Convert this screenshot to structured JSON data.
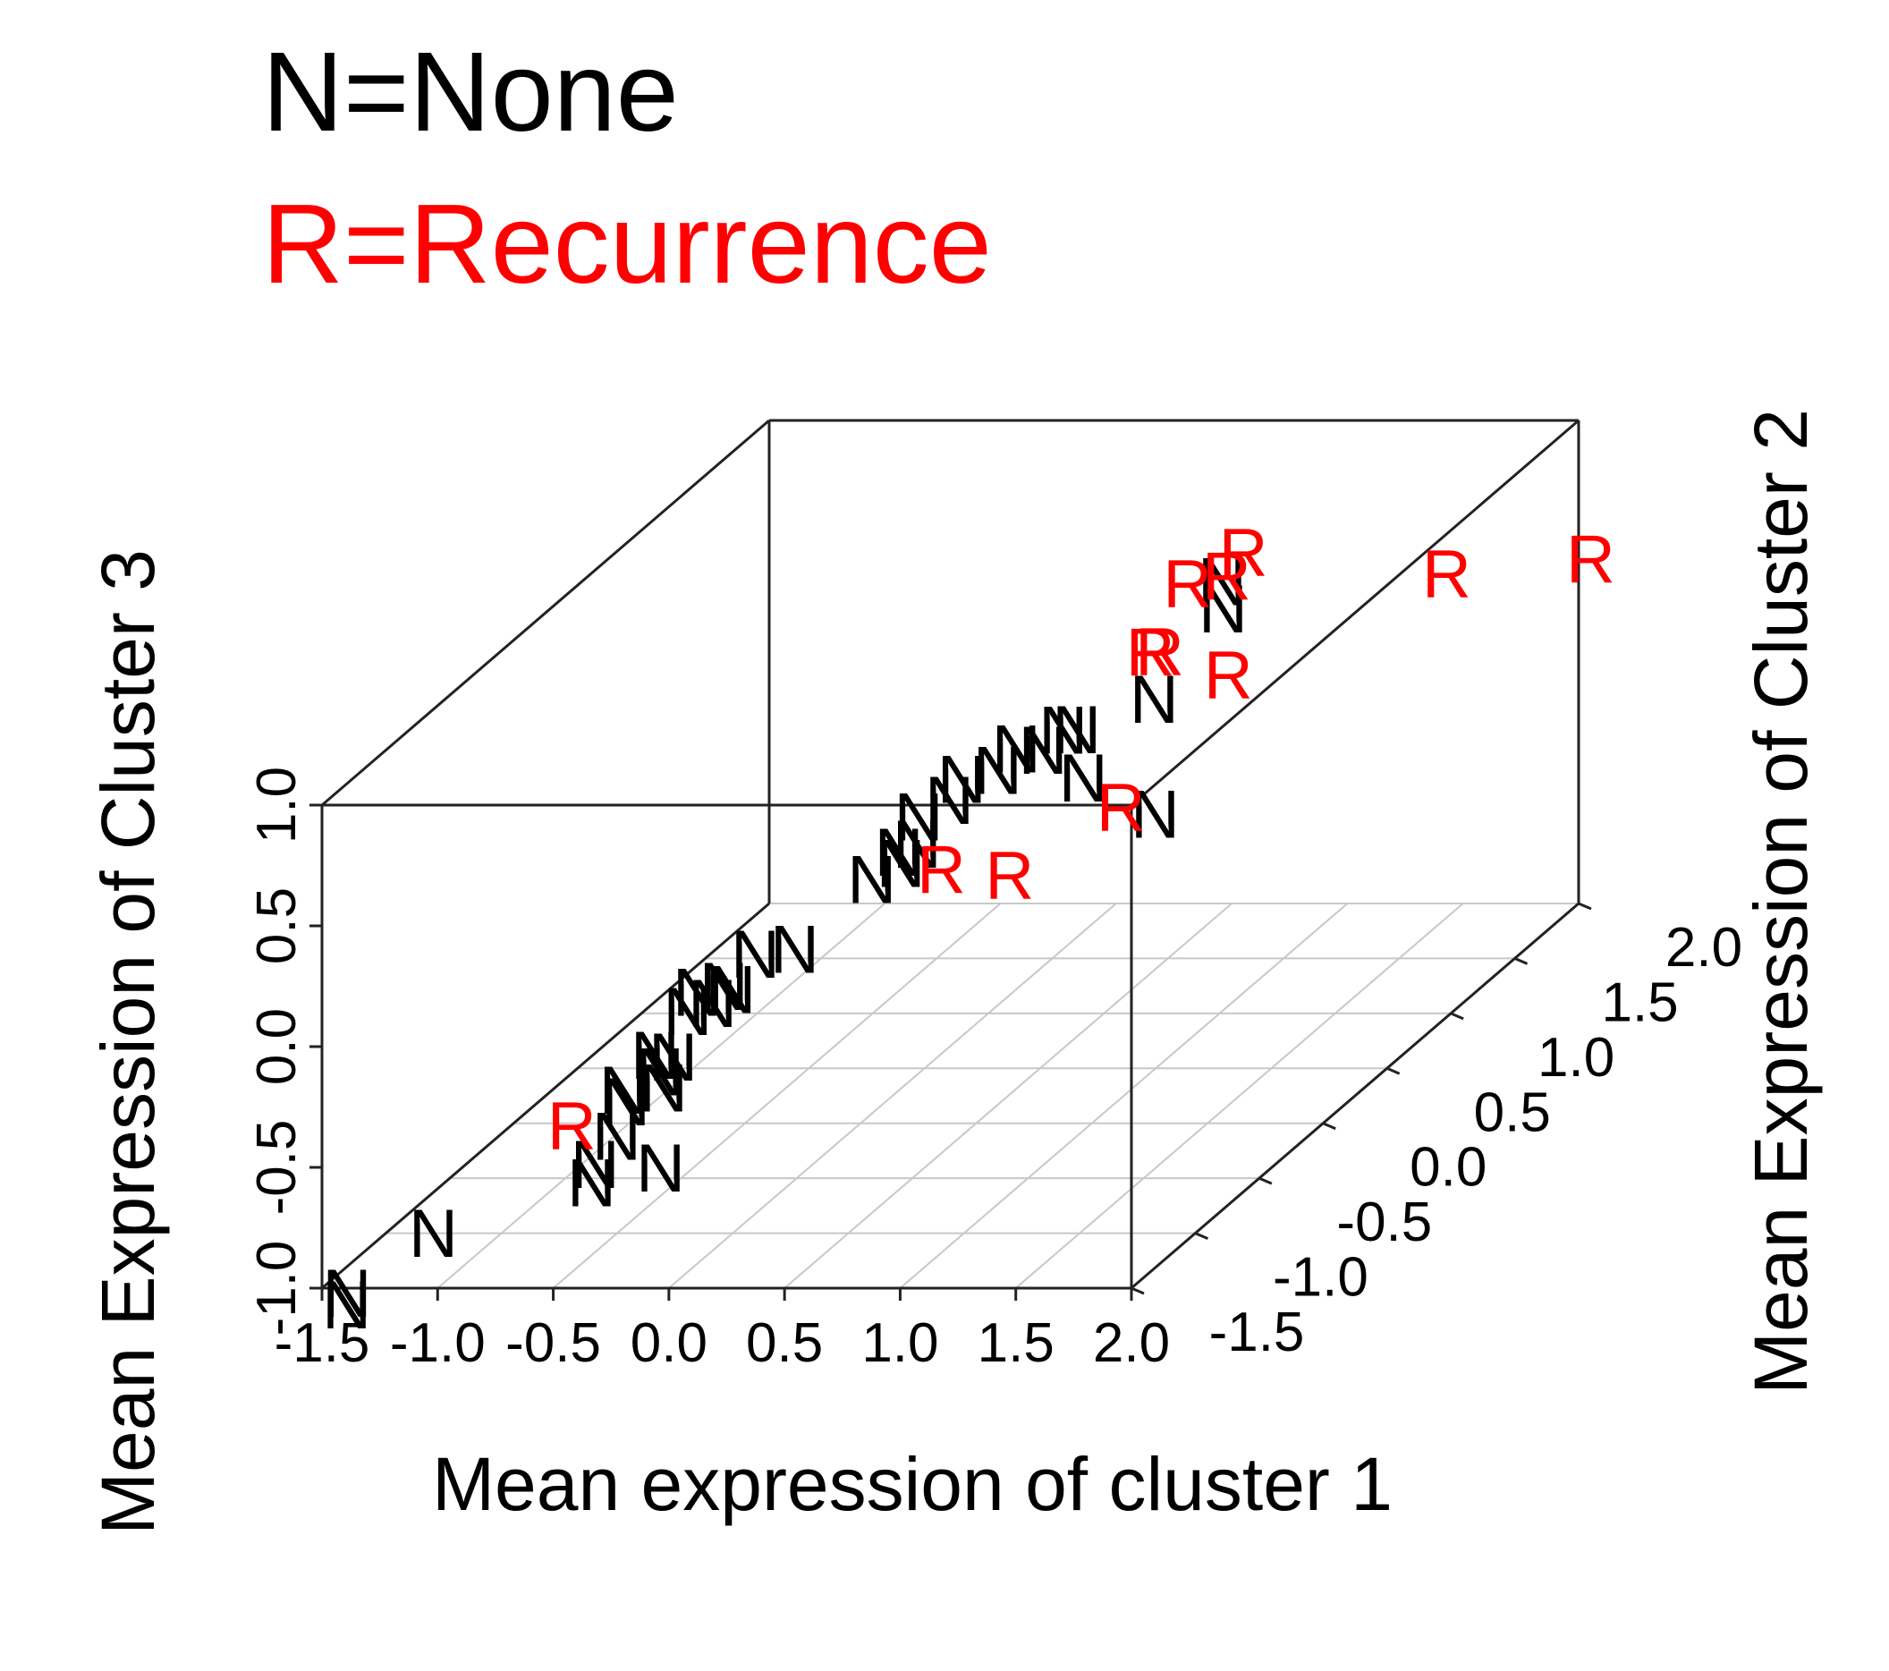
{
  "legend": {
    "none_label": "N=None",
    "recurrence_label": "R=Recurrence",
    "none_color": "#000000",
    "recurrence_color": "#ff0000"
  },
  "chart_data": {
    "type": "scatter",
    "dimensions": 3,
    "xlabel": "Mean expression of cluster 1",
    "ylabel": "Mean Expression of Cluster 2",
    "zlabel": "Mean Expression of Cluster 3",
    "xlim": [
      -1.5,
      2.0
    ],
    "ylim": [
      -1.5,
      2.0
    ],
    "zlim": [
      -1.0,
      1.0
    ],
    "x_ticks": [
      "-1.5",
      "-1.0",
      "-0.5",
      "0.0",
      "0.5",
      "1.0",
      "1.5",
      "2.0"
    ],
    "y_ticks": [
      "-1.5",
      "-1.0",
      "-0.5",
      "0.0",
      "0.5",
      "1.0",
      "1.5",
      "2.0"
    ],
    "z_ticks": [
      "-1.0",
      "-0.5",
      "0.0",
      "0.5",
      "1.0"
    ],
    "grid": "floor",
    "legend_placement": "top-left",
    "series": [
      {
        "name": "None",
        "marker": "N",
        "color": "#000000",
        "points": [
          {
            "x": -1.36,
            "y": -1.56,
            "z": -1.04
          },
          {
            "x": -1.37,
            "y": -1.54,
            "z": -1.0
          },
          {
            "x": -1.03,
            "y": -1.48,
            "z": -0.78
          },
          {
            "x": -0.66,
            "y": -0.91,
            "z": -0.83
          },
          {
            "x": -0.64,
            "y": -0.92,
            "z": -0.75
          },
          {
            "x": -0.58,
            "y": -0.86,
            "z": -0.66
          },
          {
            "x": -0.29,
            "y": -1.04,
            "z": -0.71
          },
          {
            "x": -0.69,
            "y": -0.59,
            "z": -0.64
          },
          {
            "x": -0.66,
            "y": -0.66,
            "z": -0.56
          },
          {
            "x": -0.62,
            "y": -0.45,
            "z": -0.58
          },
          {
            "x": -0.59,
            "y": -0.54,
            "z": -0.47
          },
          {
            "x": -0.5,
            "y": -0.64,
            "z": -0.56
          },
          {
            "x": -0.49,
            "y": -0.58,
            "z": -0.46
          },
          {
            "x": -0.56,
            "y": -0.34,
            "z": -0.38
          },
          {
            "x": -0.53,
            "y": -0.32,
            "z": -0.31
          },
          {
            "x": -0.48,
            "y": -0.29,
            "z": -0.37
          },
          {
            "x": -0.42,
            "y": -0.25,
            "z": -0.33
          },
          {
            "x": -0.42,
            "y": -0.31,
            "z": -0.29
          },
          {
            "x": -0.35,
            "y": -0.19,
            "z": -0.21
          },
          {
            "x": -0.18,
            "y": -0.19,
            "z": -0.19
          },
          {
            "x": -0.04,
            "y": 0.16,
            "z": -0.06
          },
          {
            "x": 0.03,
            "y": 0.26,
            "z": -0.04
          },
          {
            "x": 0.05,
            "y": 0.21,
            "z": 0.03
          },
          {
            "x": 0.1,
            "y": 0.26,
            "z": 0.04
          },
          {
            "x": 0.03,
            "y": 0.4,
            "z": 0.09
          },
          {
            "x": 0.13,
            "y": 0.46,
            "z": 0.13
          },
          {
            "x": 0.1,
            "y": 0.61,
            "z": 0.15
          },
          {
            "x": 0.2,
            "y": 0.71,
            "z": 0.14
          },
          {
            "x": 0.27,
            "y": 0.73,
            "z": 0.22
          },
          {
            "x": 0.38,
            "y": 0.74,
            "z": 0.21
          },
          {
            "x": 0.39,
            "y": 0.88,
            "z": 0.23
          },
          {
            "x": 0.47,
            "y": 0.84,
            "z": 0.25
          },
          {
            "x": 0.56,
            "y": 0.73,
            "z": 0.1
          },
          {
            "x": 0.87,
            "y": 0.73,
            "z": -0.05
          },
          {
            "x": 0.7,
            "y": 1.03,
            "z": 0.29
          },
          {
            "x": 0.91,
            "y": 1.19,
            "z": 0.59
          },
          {
            "x": 0.84,
            "y": 1.31,
            "z": 0.65
          }
        ]
      },
      {
        "name": "Recurrence",
        "marker": "R",
        "color": "#ff0000",
        "points": [
          {
            "x": -0.74,
            "y": -0.92,
            "z": -0.59
          },
          {
            "x": 0.2,
            "y": 0.27,
            "z": -0.07
          },
          {
            "x": 0.44,
            "y": 0.37,
            "z": -0.14
          },
          {
            "x": 0.7,
            "y": 0.77,
            "z": -0.04
          },
          {
            "x": 0.8,
            "y": 0.82,
            "z": 0.58
          },
          {
            "x": 0.68,
            "y": 1.11,
            "z": 0.45
          },
          {
            "x": 0.74,
            "y": 1.22,
            "z": 0.68
          },
          {
            "x": 1.01,
            "y": 1.05,
            "z": 0.38
          },
          {
            "x": 0.87,
            "y": 1.29,
            "z": 0.68
          },
          {
            "x": 0.92,
            "y": 1.33,
            "z": 0.76
          },
          {
            "x": 1.7,
            "y": 1.51,
            "z": 0.59
          },
          {
            "x": 2.03,
            "y": 2.04,
            "z": 0.41
          }
        ]
      }
    ]
  }
}
